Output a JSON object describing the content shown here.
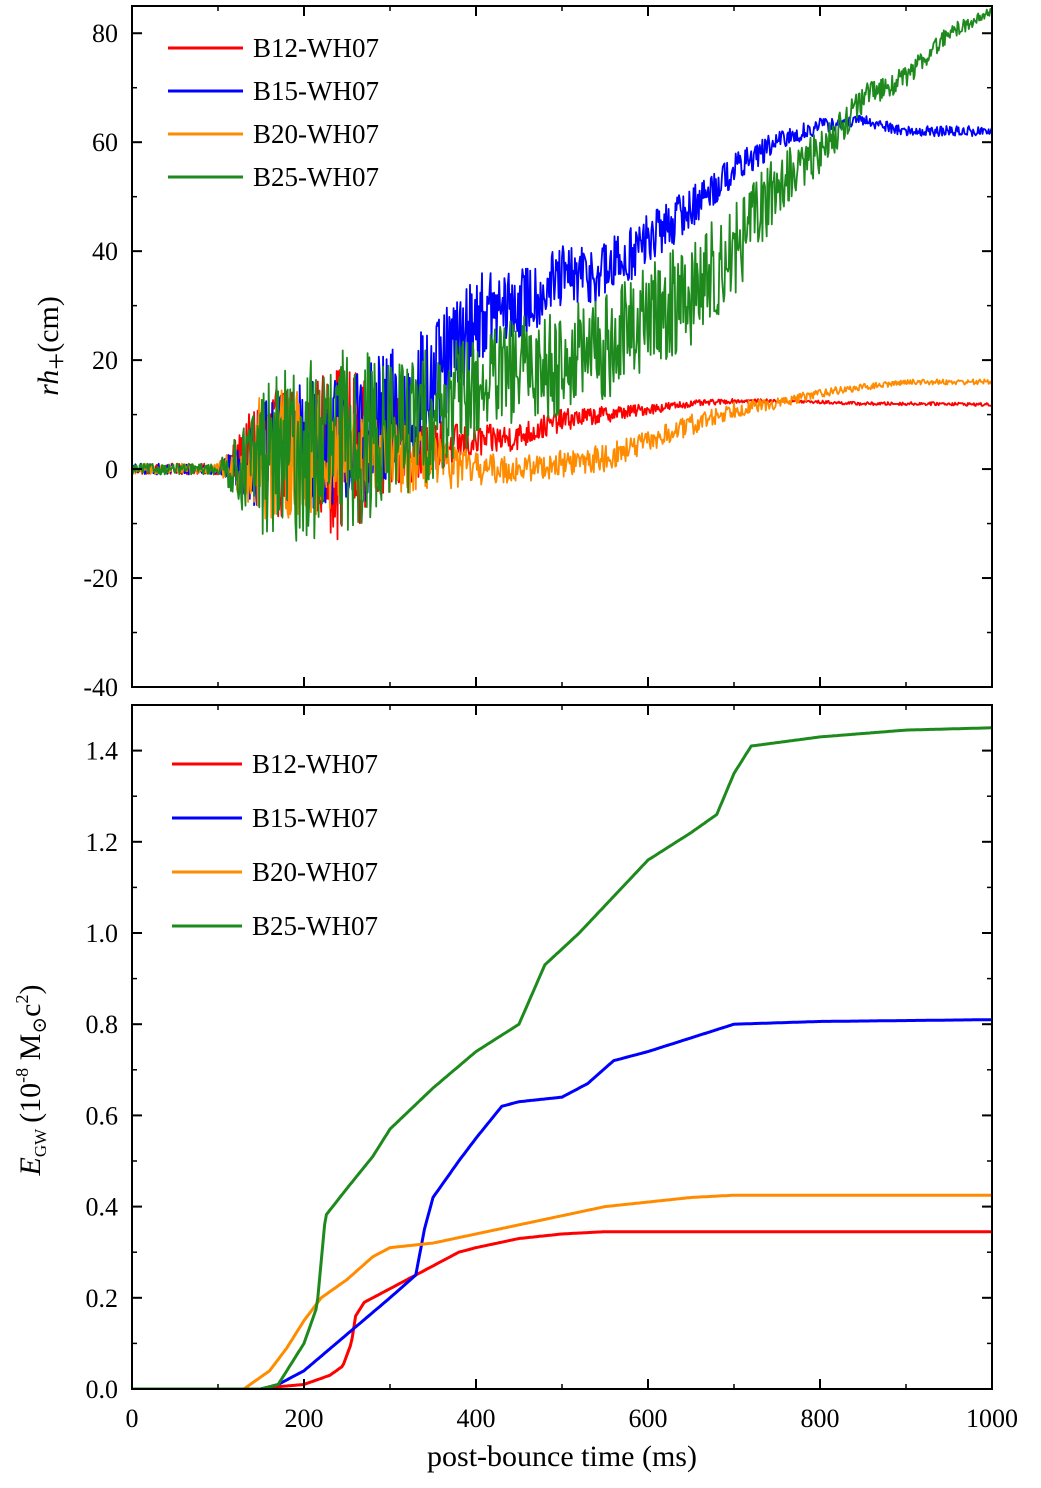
{
  "chart_data": [
    {
      "type": "line",
      "panel": "top",
      "title": "",
      "xlabel": "",
      "ylabel": "rh+ (cm)",
      "ylabel_parts": {
        "italic": "rh",
        "sub": "+",
        "unit": "(cm)"
      },
      "xlim": [
        0,
        1000
      ],
      "ylim": [
        -40,
        85
      ],
      "yticks": [
        -40,
        -20,
        0,
        20,
        40,
        60,
        80
      ],
      "ytick_labels": [
        "-40",
        "-20",
        "0",
        "20",
        "40",
        "60",
        "80"
      ],
      "xticks": [
        0,
        200,
        400,
        600,
        800,
        1000
      ],
      "legend": "top-left",
      "series": [
        {
          "name": "B12-WH07",
          "color": "#ff0000",
          "x": [
            0,
            100,
            130,
            150,
            170,
            200,
            220,
            250,
            280,
            320,
            350,
            400,
            450,
            500,
            550,
            600,
            650,
            700,
            750,
            800,
            850,
            900,
            950,
            1000
          ],
          "y": [
            0,
            0,
            2,
            5,
            3,
            5,
            4,
            3,
            5,
            5,
            4,
            5,
            6,
            9,
            10,
            11,
            12,
            12.5,
            12.5,
            12.3,
            12,
            12,
            12,
            11.8
          ],
          "noise": [
            1,
            1,
            6,
            10,
            12,
            12,
            14,
            18,
            10,
            8,
            5,
            3,
            2.5,
            2,
            1.5,
            1,
            0.6,
            0.4,
            0.3,
            0.3,
            0.3,
            0.3,
            0.3,
            0.3
          ]
        },
        {
          "name": "B15-WH07",
          "color": "#0000ff",
          "x": [
            0,
            100,
            130,
            150,
            200,
            250,
            300,
            350,
            400,
            450,
            500,
            550,
            600,
            650,
            700,
            750,
            800,
            850,
            900,
            950,
            1000
          ],
          "y": [
            0,
            0,
            0,
            2,
            4,
            6,
            8,
            15,
            28,
            30,
            35,
            36,
            42,
            48,
            55,
            60,
            63,
            64,
            62,
            62,
            62
          ],
          "noise": [
            1,
            1,
            5,
            10,
            12,
            12,
            14,
            12,
            8,
            7,
            6,
            6,
            5,
            4,
            3,
            2,
            1.5,
            1,
            1,
            1,
            1
          ]
        },
        {
          "name": "B20-WH07",
          "color": "#ff8c00",
          "x": [
            0,
            100,
            130,
            150,
            200,
            250,
            300,
            350,
            400,
            450,
            500,
            550,
            600,
            650,
            700,
            750,
            800,
            850,
            900,
            950,
            1000
          ],
          "y": [
            0,
            0,
            0,
            2,
            3,
            2,
            2,
            1,
            0,
            0,
            1,
            2,
            5,
            8,
            11,
            12,
            14,
            15,
            16,
            16,
            16
          ],
          "noise": [
            1,
            1,
            6,
            12,
            12,
            10,
            7,
            5,
            3,
            2.5,
            2.5,
            2.5,
            2,
            2,
            1.5,
            1,
            0.8,
            0.6,
            0.5,
            0.5,
            0.5
          ]
        },
        {
          "name": "B25-WH07",
          "color": "#1e8a1e",
          "x": [
            0,
            100,
            130,
            150,
            200,
            250,
            300,
            350,
            400,
            450,
            500,
            550,
            600,
            650,
            700,
            750,
            800,
            850,
            900,
            950,
            1000
          ],
          "y": [
            0,
            0,
            0,
            2,
            3,
            5,
            7,
            10,
            15,
            18,
            20,
            22,
            28,
            32,
            40,
            52,
            58,
            68,
            72,
            80,
            84
          ],
          "noise": [
            1,
            1,
            8,
            14,
            17,
            17,
            14,
            12,
            10,
            10,
            10,
            10,
            10,
            10,
            9,
            6,
            4,
            2.5,
            2,
            1.5,
            1
          ]
        }
      ]
    },
    {
      "type": "line",
      "panel": "bottom",
      "title": "",
      "xlabel": "post-bounce time (ms)",
      "ylabel": "EGW (10-8 M⊙c2)",
      "ylabel_parts": {
        "main": "E",
        "sub": "GW",
        "open": "(10",
        "exp": "-8",
        "mass": " M",
        "sun": "⊙",
        "c": "c",
        "csup": "2",
        "close": ")"
      },
      "xlim": [
        0,
        1000
      ],
      "ylim": [
        0,
        1.5
      ],
      "yticks": [
        0,
        0.2,
        0.4,
        0.6,
        0.8,
        1.0,
        1.2,
        1.4
      ],
      "ytick_labels": [
        "0.0",
        "0.2",
        "0.4",
        "0.6",
        "0.8",
        "1.0",
        "1.2",
        "1.4"
      ],
      "xticks": [
        0,
        200,
        400,
        600,
        800,
        1000
      ],
      "xtick_labels": [
        "0",
        "200",
        "400",
        "600",
        "800",
        "1000"
      ],
      "legend": "top-left",
      "series": [
        {
          "name": "B12-WH07",
          "color": "#ff0000",
          "x": [
            0,
            150,
            170,
            200,
            230,
            245,
            255,
            260,
            270,
            300,
            330,
            350,
            380,
            400,
            450,
            500,
            550,
            600,
            700,
            800,
            900,
            1000
          ],
          "y": [
            0,
            0,
            0.005,
            0.01,
            0.03,
            0.05,
            0.1,
            0.16,
            0.19,
            0.22,
            0.25,
            0.27,
            0.3,
            0.31,
            0.33,
            0.34,
            0.345,
            0.345,
            0.345,
            0.345,
            0.345,
            0.345
          ]
        },
        {
          "name": "B15-WH07",
          "color": "#0000ff",
          "x": [
            0,
            150,
            170,
            200,
            250,
            300,
            330,
            340,
            350,
            380,
            400,
            430,
            450,
            500,
            530,
            560,
            600,
            650,
            700,
            800,
            900,
            1000
          ],
          "y": [
            0,
            0,
            0.01,
            0.04,
            0.12,
            0.2,
            0.25,
            0.35,
            0.42,
            0.5,
            0.55,
            0.62,
            0.63,
            0.64,
            0.67,
            0.72,
            0.74,
            0.77,
            0.8,
            0.806,
            0.808,
            0.81
          ]
        },
        {
          "name": "B20-WH07",
          "color": "#ff8c00",
          "x": [
            0,
            130,
            145,
            160,
            180,
            200,
            220,
            250,
            280,
            300,
            350,
            400,
            450,
            500,
            550,
            600,
            650,
            700,
            800,
            900,
            1000
          ],
          "y": [
            0,
            0,
            0.02,
            0.04,
            0.09,
            0.15,
            0.2,
            0.24,
            0.29,
            0.31,
            0.32,
            0.34,
            0.36,
            0.38,
            0.4,
            0.41,
            0.42,
            0.425,
            0.425,
            0.425,
            0.425
          ]
        },
        {
          "name": "B25-WH07",
          "color": "#1e8a1e",
          "x": [
            0,
            150,
            170,
            200,
            215,
            225,
            250,
            280,
            300,
            350,
            400,
            450,
            480,
            520,
            560,
            600,
            650,
            680,
            700,
            720,
            800,
            900,
            1000
          ],
          "y": [
            0,
            0,
            0.01,
            0.1,
            0.18,
            0.38,
            0.44,
            0.51,
            0.57,
            0.66,
            0.74,
            0.8,
            0.93,
            1.0,
            1.08,
            1.16,
            1.22,
            1.26,
            1.35,
            1.41,
            1.43,
            1.445,
            1.45
          ]
        }
      ]
    }
  ]
}
